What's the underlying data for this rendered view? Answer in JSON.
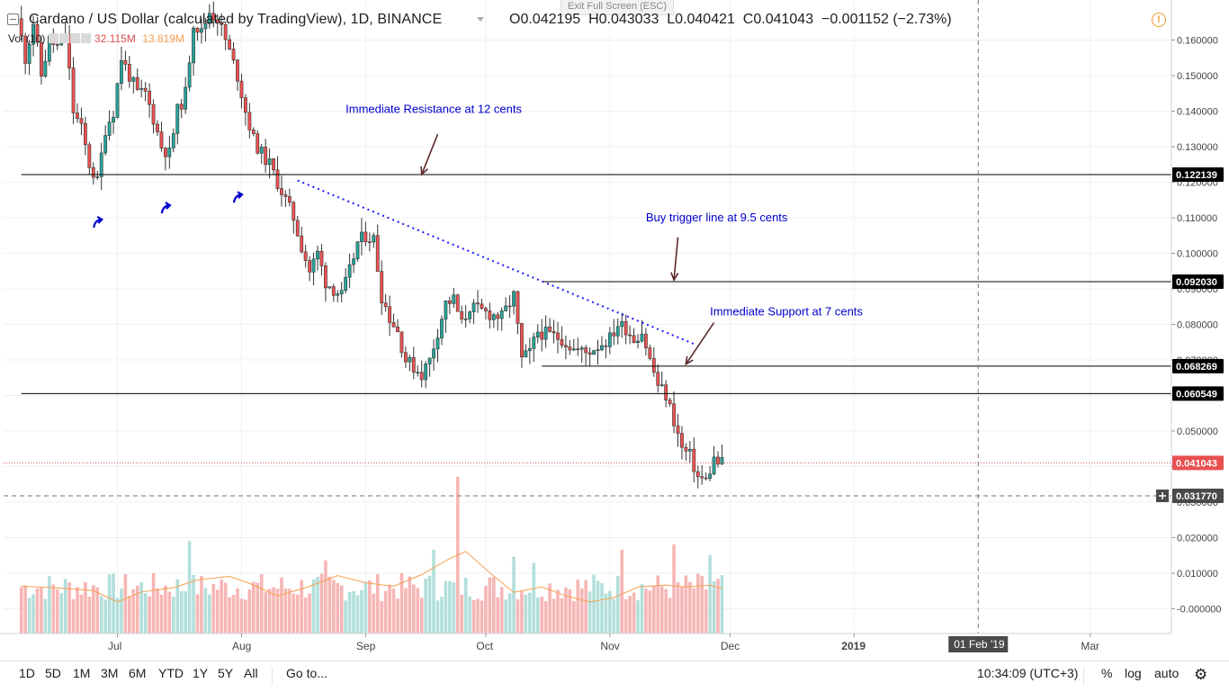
{
  "header": {
    "collapse_icon": "minus-square-icon",
    "symbol": "Cardano / US Dollar (calculated by TradingView), 1D, BINANCE",
    "open": "O0.042195",
    "high": "H0.043033",
    "low": "L0.040421",
    "close": "C0.041043",
    "change": "−0.001152 (−2.73%)",
    "vol_label": "Vol (10)",
    "vol_value": "32.115M",
    "vol_ma": "13.819M",
    "exit_fullscreen": "Exit Full Screen (ESC)",
    "warning_icon": "alert-circle-icon"
  },
  "colors": {
    "up": "#26a69a",
    "down": "#ef5350",
    "line": "#000000",
    "trend": "#1a1aff",
    "annotation": "#0000cc",
    "arrow": "#5a2a2a",
    "price_tag": "#e85050",
    "vol_up": "#b2dfdb",
    "vol_down": "#f7b6b5",
    "vol_ma": "#f5a050"
  },
  "chart_data": {
    "type": "candlestick",
    "title": "Cardano / US Dollar (calculated by TradingView), 1D, BINANCE",
    "ylim": [
      -0.007,
      0.168
    ],
    "y_ticks": [
      "0.160000",
      "0.150000",
      "0.140000",
      "0.130000",
      "0.120000",
      "0.110000",
      "0.100000",
      "0.090000",
      "0.080000",
      "0.070000",
      "0.060000",
      "0.050000",
      "0.040000",
      "0.030000",
      "0.020000",
      "0.010000",
      "-0.000000"
    ],
    "y_tick_values": [
      0.16,
      0.15,
      0.14,
      0.13,
      0.12,
      0.11,
      0.1,
      0.09,
      0.08,
      0.07,
      0.06,
      0.05,
      0.04,
      0.03,
      0.02,
      0.01,
      0.0
    ],
    "x_ticks": [
      {
        "label": "Jul",
        "date": "2018-07-01"
      },
      {
        "label": "Aug",
        "date": "2018-08-01"
      },
      {
        "label": "Sep",
        "date": "2018-09-01"
      },
      {
        "label": "Oct",
        "date": "2018-10-01"
      },
      {
        "label": "Nov",
        "date": "2018-11-01"
      },
      {
        "label": "Dec",
        "date": "2018-12-01"
      },
      {
        "label": "2019",
        "date": "2019-01-01"
      },
      {
        "label": "Mar",
        "date": "2019-03-01"
      }
    ],
    "crosshair_x": {
      "label": "01 Feb '19",
      "date": "2019-02-01"
    },
    "crosshair_y": {
      "label": "0.031770",
      "value": 0.03177
    },
    "last_price": {
      "label": "0.041043",
      "value": 0.041043
    },
    "horizontal_lines": [
      {
        "value": 0.122139,
        "label": "0.122139",
        "from": "2018-06-07"
      },
      {
        "value": 0.09203,
        "label": "0.092030",
        "from": "2018-10-15"
      },
      {
        "value": 0.068269,
        "label": "0.068269",
        "from": "2018-10-15"
      },
      {
        "value": 0.060549,
        "label": "0.060549",
        "from": "2018-06-07"
      }
    ],
    "trendline": {
      "from": {
        "date": "2018-08-15",
        "value": 0.1205
      },
      "to": {
        "date": "2018-11-22",
        "value": 0.0745
      }
    },
    "annotations": [
      {
        "text": "Immediate Resistance at 12 cents",
        "date": "2018-08-27",
        "value": 0.1395,
        "arrow_from": {
          "date": "2018-09-19",
          "value": 0.1335
        },
        "arrow_to": {
          "date": "2018-09-15",
          "value": 0.1222
        }
      },
      {
        "text": "Buy trigger line at 9.5 cents",
        "date": "2018-11-10",
        "value": 0.109,
        "arrow_from": {
          "date": "2018-11-18",
          "value": 0.1045
        },
        "arrow_to": {
          "date": "2018-11-17",
          "value": 0.0925
        }
      },
      {
        "text": "Immediate Support at 7 cents",
        "date": "2018-11-26",
        "value": 0.0825,
        "arrow_from": {
          "date": "2018-11-27",
          "value": 0.0805
        },
        "arrow_to": {
          "date": "2018-11-20",
          "value": 0.0688
        }
      }
    ],
    "turn_arrows": [
      {
        "date": "2018-06-26",
        "value": 0.1085
      },
      {
        "date": "2018-07-13",
        "value": 0.1125
      },
      {
        "date": "2018-07-31",
        "value": 0.1155
      }
    ],
    "series": [
      {
        "name": "ADAUSD daily price",
        "path": [
          [
            "2018-06-07",
            0.166
          ],
          [
            "2018-06-09",
            0.155
          ],
          [
            "2018-06-11",
            0.165
          ],
          [
            "2018-06-13",
            0.15
          ],
          [
            "2018-06-15",
            0.16
          ],
          [
            "2018-06-17",
            0.158
          ],
          [
            "2018-06-19",
            0.162
          ],
          [
            "2018-06-21",
            0.14
          ],
          [
            "2018-06-23",
            0.135
          ],
          [
            "2018-06-25",
            0.125
          ],
          [
            "2018-06-27",
            0.12
          ],
          [
            "2018-06-29",
            0.135
          ],
          [
            "2018-07-01",
            0.14
          ],
          [
            "2018-07-03",
            0.155
          ],
          [
            "2018-07-05",
            0.15
          ],
          [
            "2018-07-07",
            0.145
          ],
          [
            "2018-07-09",
            0.145
          ],
          [
            "2018-07-11",
            0.138
          ],
          [
            "2018-07-13",
            0.13
          ],
          [
            "2018-07-15",
            0.128
          ],
          [
            "2018-07-17",
            0.14
          ],
          [
            "2018-07-19",
            0.145
          ],
          [
            "2018-07-21",
            0.165
          ],
          [
            "2018-07-23",
            0.162
          ],
          [
            "2018-07-25",
            0.168
          ],
          [
            "2018-07-27",
            0.166
          ],
          [
            "2018-07-29",
            0.16
          ],
          [
            "2018-08-01",
            0.15
          ],
          [
            "2018-08-03",
            0.14
          ],
          [
            "2018-08-05",
            0.132
          ],
          [
            "2018-08-07",
            0.128
          ],
          [
            "2018-08-09",
            0.125
          ],
          [
            "2018-08-11",
            0.12
          ],
          [
            "2018-08-13",
            0.115
          ],
          [
            "2018-08-15",
            0.11
          ],
          [
            "2018-08-17",
            0.102
          ],
          [
            "2018-08-19",
            0.095
          ],
          [
            "2018-08-21",
            0.1
          ],
          [
            "2018-08-23",
            0.092
          ],
          [
            "2018-08-25",
            0.09
          ],
          [
            "2018-08-27",
            0.088
          ],
          [
            "2018-08-29",
            0.095
          ],
          [
            "2018-08-31",
            0.103
          ],
          [
            "2018-09-02",
            0.105
          ],
          [
            "2018-09-04",
            0.104
          ],
          [
            "2018-09-06",
            0.088
          ],
          [
            "2018-09-08",
            0.082
          ],
          [
            "2018-09-10",
            0.078
          ],
          [
            "2018-09-12",
            0.07
          ],
          [
            "2018-09-14",
            0.068
          ],
          [
            "2018-09-16",
            0.066
          ],
          [
            "2018-09-18",
            0.07
          ],
          [
            "2018-09-20",
            0.078
          ],
          [
            "2018-09-22",
            0.086
          ],
          [
            "2018-09-24",
            0.087
          ],
          [
            "2018-09-26",
            0.08
          ],
          [
            "2018-09-28",
            0.085
          ],
          [
            "2018-09-30",
            0.084
          ],
          [
            "2018-10-03",
            0.083
          ],
          [
            "2018-10-06",
            0.082
          ],
          [
            "2018-10-09",
            0.088
          ],
          [
            "2018-10-11",
            0.07
          ],
          [
            "2018-10-13",
            0.072
          ],
          [
            "2018-10-15",
            0.078
          ],
          [
            "2018-10-18",
            0.077
          ],
          [
            "2018-10-21",
            0.076
          ],
          [
            "2018-10-24",
            0.073
          ],
          [
            "2018-10-27",
            0.072
          ],
          [
            "2018-10-30",
            0.074
          ],
          [
            "2018-11-02",
            0.076
          ],
          [
            "2018-11-04",
            0.08
          ],
          [
            "2018-11-06",
            0.079
          ],
          [
            "2018-11-08",
            0.076
          ],
          [
            "2018-11-10",
            0.078
          ],
          [
            "2018-11-12",
            0.07
          ],
          [
            "2018-11-14",
            0.063
          ],
          [
            "2018-11-16",
            0.06
          ],
          [
            "2018-11-18",
            0.053
          ],
          [
            "2018-11-20",
            0.045
          ],
          [
            "2018-11-22",
            0.043
          ],
          [
            "2018-11-24",
            0.037
          ],
          [
            "2018-11-26",
            0.036
          ],
          [
            "2018-11-28",
            0.042
          ],
          [
            "2018-11-29",
            0.041
          ]
        ]
      }
    ],
    "volume": {
      "ylabel": "Vol (10)",
      "ma_path": [
        [
          "2018-06-07",
          0.0062
        ],
        [
          "2018-06-15",
          0.0058
        ],
        [
          "2018-06-25",
          0.005
        ],
        [
          "2018-07-01",
          0.0018
        ],
        [
          "2018-07-07",
          0.0046
        ],
        [
          "2018-07-15",
          0.0058
        ],
        [
          "2018-07-21",
          0.008
        ],
        [
          "2018-07-29",
          0.009
        ],
        [
          "2018-08-03",
          0.007
        ],
        [
          "2018-08-10",
          0.0035
        ],
        [
          "2018-08-17",
          0.0058
        ],
        [
          "2018-08-25",
          0.0092
        ],
        [
          "2018-09-01",
          0.0072
        ],
        [
          "2018-09-08",
          0.0062
        ],
        [
          "2018-09-15",
          0.0095
        ],
        [
          "2018-09-22",
          0.014
        ],
        [
          "2018-09-26",
          0.016
        ],
        [
          "2018-10-02",
          0.01
        ],
        [
          "2018-10-08",
          0.0045
        ],
        [
          "2018-10-15",
          0.006
        ],
        [
          "2018-10-21",
          0.0035
        ],
        [
          "2018-10-27",
          0.0018
        ],
        [
          "2018-11-02",
          0.003
        ],
        [
          "2018-11-08",
          0.006
        ],
        [
          "2018-11-15",
          0.0065
        ],
        [
          "2018-11-20",
          0.006
        ],
        [
          "2018-11-26",
          0.0065
        ],
        [
          "2018-11-29",
          0.0055
        ]
      ],
      "peaks": [
        [
          "2018-07-19",
          0.019
        ],
        [
          "2018-08-22",
          0.0135
        ],
        [
          "2018-09-18",
          0.0165
        ],
        [
          "2018-09-24",
          0.037
        ],
        [
          "2018-10-08",
          0.0145
        ],
        [
          "2018-10-13",
          0.0128
        ],
        [
          "2018-11-04",
          0.0165
        ],
        [
          "2018-11-17",
          0.018
        ],
        [
          "2018-11-26",
          0.015
        ]
      ]
    }
  },
  "toolbar": {
    "ranges": [
      "1D",
      "5D",
      "1M",
      "3M",
      "6M",
      "YTD",
      "1Y",
      "5Y",
      "All"
    ],
    "goto": "Go to...",
    "time": "10:34:09 (UTC+3)",
    "percent": "%",
    "log": "log",
    "auto": "auto",
    "settings_icon": "gear-icon"
  }
}
